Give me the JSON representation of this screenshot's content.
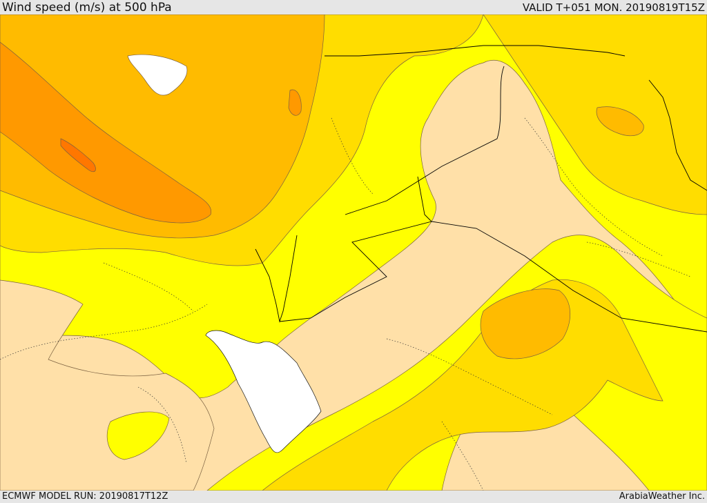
{
  "header": {
    "title": "Wind speed (m/s) at 500 hPa",
    "valid": "VALID T+051 MON. 20190819T15Z"
  },
  "footer": {
    "model_run": "ECMWF MODEL RUN: 20190817T12Z",
    "credit": "ArabiaWeather Inc."
  },
  "colors": {
    "background_low": "#ffe0a8",
    "level_1": "#ffff00",
    "level_2": "#ffdd00",
    "level_3": "#ffbb00",
    "level_4": "#ff9900",
    "level_5": "#ff7700",
    "water_white": "#ffffff",
    "contour": "#7a6040",
    "border": "#000000"
  }
}
